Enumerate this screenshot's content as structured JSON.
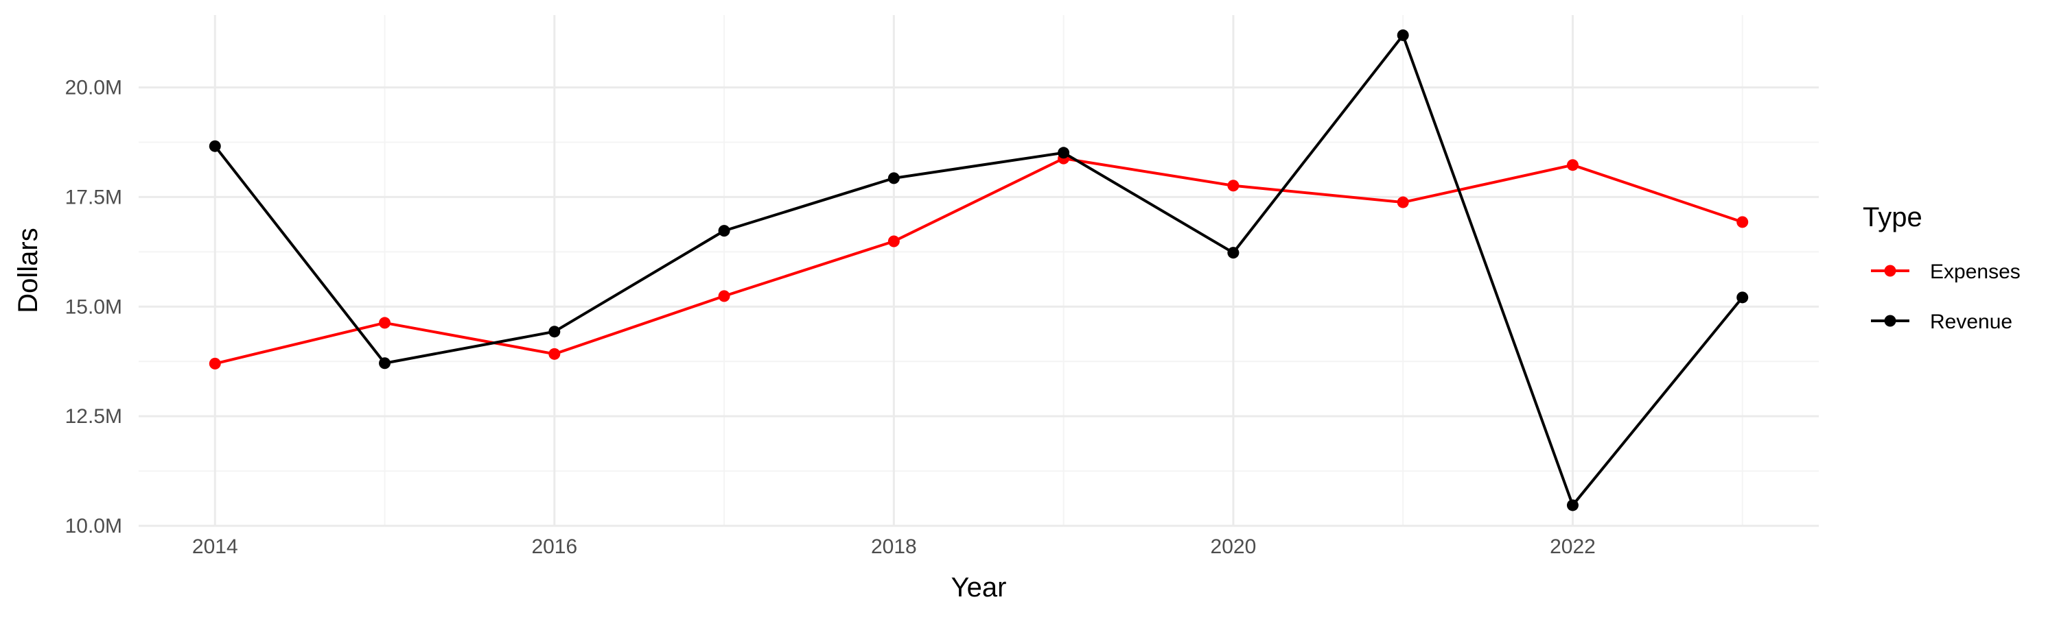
{
  "chart_data": {
    "type": "line",
    "title": "",
    "xlabel": "Year",
    "ylabel": "Dollars",
    "x": [
      2014,
      2015,
      2016,
      2017,
      2018,
      2019,
      2020,
      2021,
      2022,
      2023
    ],
    "xlim": [
      2013.55,
      2023.45
    ],
    "ylim": [
      10000000,
      21650000
    ],
    "x_ticks": [
      2014,
      2016,
      2018,
      2020,
      2022
    ],
    "x_tick_labels": [
      "2014",
      "2016",
      "2018",
      "2020",
      "2022"
    ],
    "y_ticks": [
      10000000,
      12500000,
      15000000,
      17500000,
      20000000
    ],
    "y_tick_labels": [
      "10.0M",
      "12.5M",
      "15.0M",
      "17.5M",
      "20.0M"
    ],
    "grid": true,
    "legend": {
      "title": "Type",
      "position": "right"
    },
    "series": [
      {
        "name": "Expenses",
        "color": "#ff0000",
        "values": [
          13700000,
          14630000,
          13920000,
          15240000,
          16490000,
          18380000,
          17760000,
          17380000,
          18230000,
          16930000
        ]
      },
      {
        "name": "Revenue",
        "color": "#000000",
        "values": [
          18660000,
          13710000,
          14430000,
          16730000,
          17930000,
          18510000,
          16230000,
          21190000,
          10470000,
          15210000
        ]
      }
    ]
  }
}
